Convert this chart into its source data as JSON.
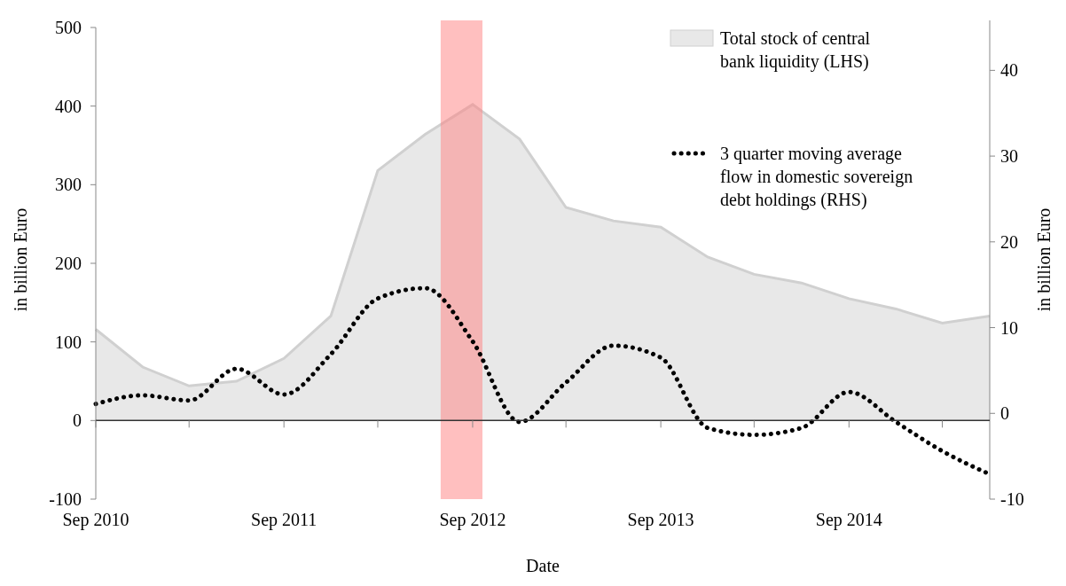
{
  "chart_data": {
    "type": "area",
    "xlabel": "Date",
    "ylabel": "in billion Euro",
    "y2label": "in billion Euro",
    "x": [
      "2010-09",
      "2010-12",
      "2011-03",
      "2011-06",
      "2011-09",
      "2011-12",
      "2012-03",
      "2012-06",
      "2012-09",
      "2012-12",
      "2013-03",
      "2013-06",
      "2013-09",
      "2013-12",
      "2014-03",
      "2014-06",
      "2014-09",
      "2014-12",
      "2015-03",
      "2015-06"
    ],
    "series": [
      {
        "name": "Total stock of central bank liquidity (LHS)",
        "color": "#e8e8e8",
        "values": [
          116,
          68,
          44,
          50,
          79,
          133,
          318,
          364,
          402,
          358,
          271,
          254,
          246,
          208,
          186,
          175,
          155,
          142,
          124,
          133
        ]
      },
      {
        "name": "3 quarter moving average flow in domestic sovereign debt holdings (RHS)",
        "type": "line",
        "axis": "y2",
        "color": "#000000",
        "line_style": "dotted",
        "values": [
          1.1,
          2.1,
          1.5,
          5.2,
          2.2,
          6.9,
          13.4,
          14.6,
          8.4,
          -1.0,
          3.6,
          7.9,
          6.5,
          -1.7,
          -2.5,
          -1.7,
          2.5,
          -1.0,
          -4.4,
          -7.1
        ]
      }
    ],
    "xlim": [
      "2010-09",
      "2015-06"
    ],
    "xticks": [
      {
        "value": "2010-09",
        "label": "Sep 2010"
      },
      {
        "value": "2011-03",
        "label": null
      },
      {
        "value": "2011-09",
        "label": "Sep 2011"
      },
      {
        "value": "2012-03",
        "label": null
      },
      {
        "value": "2012-09",
        "label": "Sep 2012"
      },
      {
        "value": "2013-03",
        "label": null
      },
      {
        "value": "2013-09",
        "label": "Sep 2013"
      },
      {
        "value": "2014-03",
        "label": null
      },
      {
        "value": "2014-09",
        "label": "Sep 2014"
      },
      {
        "value": "2015-03",
        "label": null
      }
    ],
    "ylim": [
      -100,
      500
    ],
    "yticks": [
      -100,
      0,
      100,
      200,
      300,
      400,
      500
    ],
    "y2lim": [
      -10,
      45
    ],
    "y2ticks": [
      -10,
      0,
      10,
      20,
      30,
      40
    ],
    "bands": [
      {
        "axis": "x",
        "from": "2012-07-01",
        "to": "2012-09-20",
        "color": "#ff8080"
      }
    ],
    "legend": "top right"
  }
}
